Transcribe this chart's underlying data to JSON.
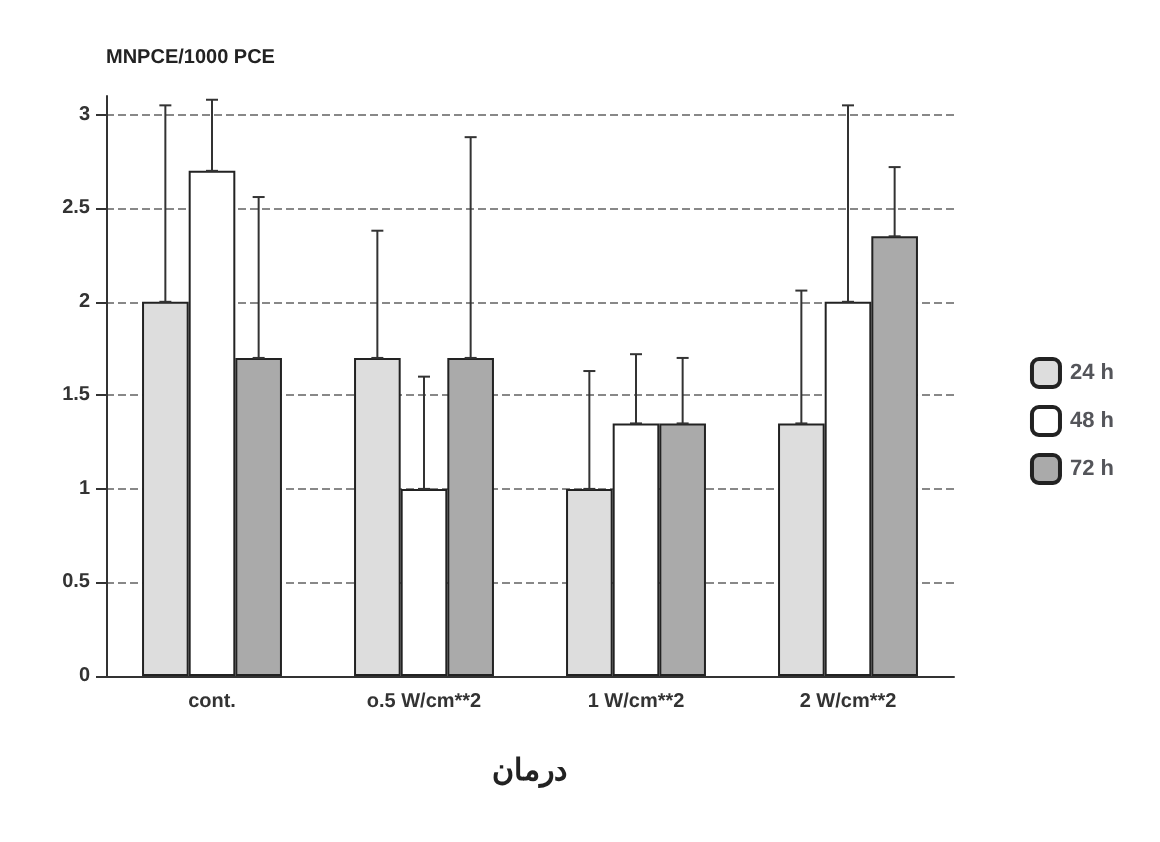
{
  "chart_data": {
    "type": "bar",
    "ylabel": "MNPCE/1000 PCE",
    "xlabel": "درمان",
    "categories": [
      "cont.",
      "o.5 W/cm**2",
      "1 W/cm**2",
      "2 W/cm**2"
    ],
    "series": [
      {
        "name": "24 h",
        "color": "#dddddd",
        "values": [
          2.0,
          1.7,
          1.0,
          1.35
        ],
        "errors": [
          [
            2.0,
            3.05
          ],
          [
            1.7,
            2.38
          ],
          [
            1.0,
            1.63
          ],
          [
            1.35,
            2.06
          ]
        ]
      },
      {
        "name": "48 h",
        "color": "#ffffff",
        "values": [
          2.7,
          1.0,
          1.35,
          2.0
        ],
        "errors": [
          [
            2.7,
            3.08
          ],
          [
            1.0,
            1.6
          ],
          [
            1.35,
            1.72
          ],
          [
            2.0,
            3.05
          ]
        ]
      },
      {
        "name": "72 h",
        "color": "#aaaaaa",
        "values": [
          1.7,
          1.7,
          1.35,
          2.35
        ],
        "errors": [
          [
            1.7,
            2.56
          ],
          [
            1.7,
            2.88
          ],
          [
            1.35,
            1.7
          ],
          [
            2.35,
            2.72
          ]
        ]
      }
    ],
    "ylim": [
      0,
      3.1
    ],
    "yticks": [
      0,
      0.5,
      1,
      1.5,
      2,
      2.5,
      3
    ],
    "grid": "y",
    "legend": "right"
  }
}
